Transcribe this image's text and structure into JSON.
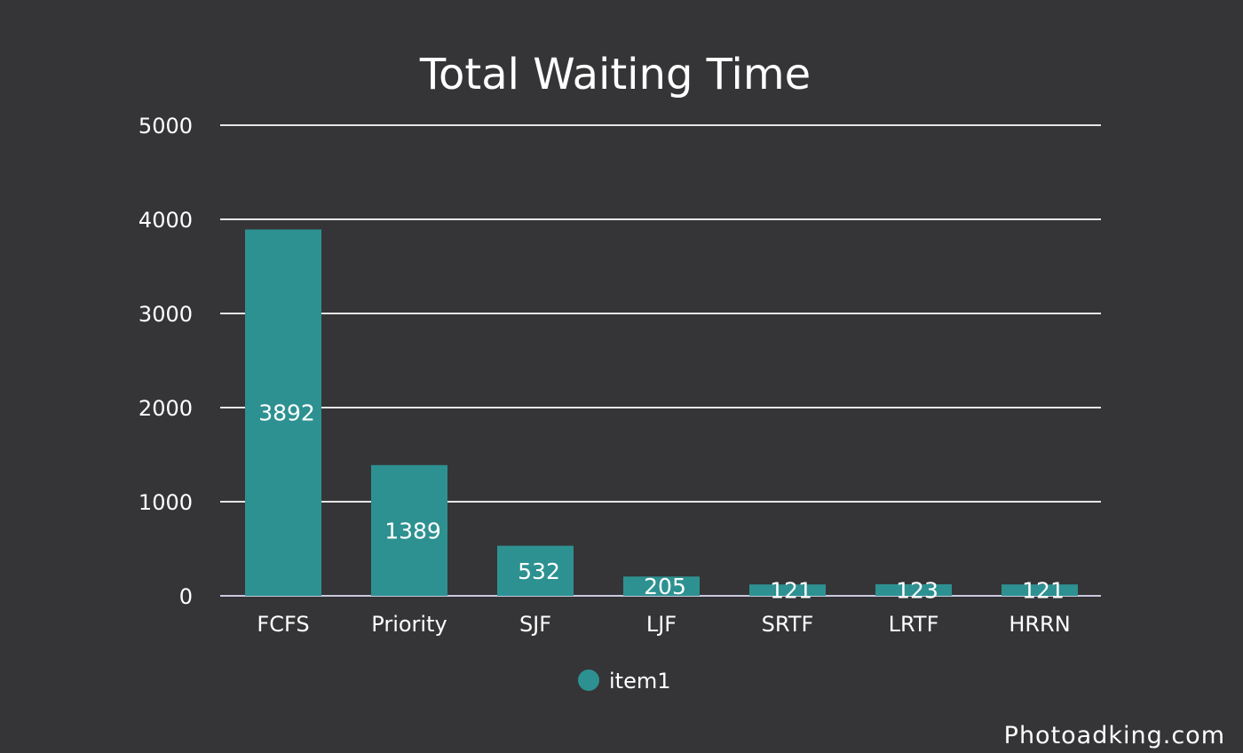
{
  "chart_data": {
    "type": "bar",
    "title": "Total Waiting Time",
    "categories": [
      "FCFS",
      "Priority",
      "SJF",
      "LJF",
      "SRTF",
      "LRTF",
      "HRRN"
    ],
    "series": [
      {
        "name": "item1",
        "values": [
          3892,
          1389,
          532,
          205,
          121,
          123,
          121
        ],
        "color": "#2e9191"
      }
    ],
    "xlabel": "",
    "ylabel": "",
    "ylim": [
      0,
      5000
    ],
    "yticks": [
      0,
      1000,
      2000,
      3000,
      4000,
      5000
    ],
    "grid": true,
    "legend": "bottom",
    "data_labels": true
  },
  "colors": {
    "background": "#353537",
    "bar": "#2e9191",
    "text": "#ffffff",
    "grid": "#e6e6e6"
  },
  "watermark": "Photoadking.com"
}
